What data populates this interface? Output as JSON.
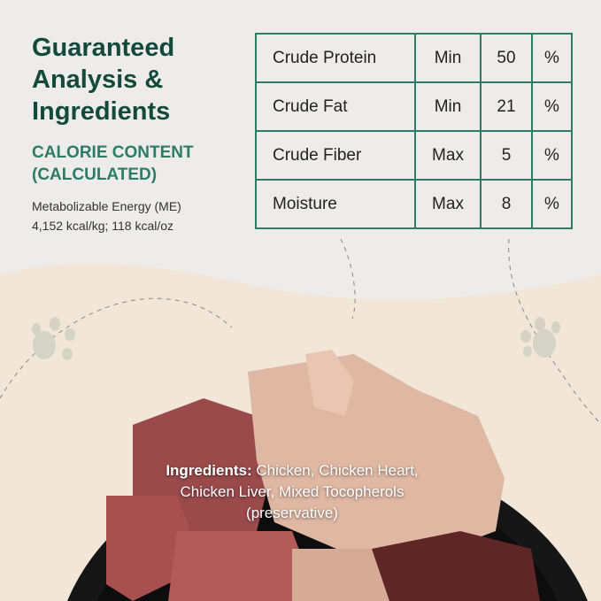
{
  "heading": {
    "title_lines": [
      "Guaranteed",
      "Analysis &",
      "Ingredients"
    ]
  },
  "calorie": {
    "label_lines": [
      "CALORIE CONTENT",
      "(CALCULATED)"
    ],
    "me_label": "Metabolizable Energy (ME)",
    "me_value": "4,152 kcal/kg; 118 kcal/oz"
  },
  "analysis": [
    {
      "name": "Crude Protein",
      "qual": "Min",
      "value": "50",
      "unit": "%"
    },
    {
      "name": "Crude Fat",
      "qual": "Min",
      "value": "21",
      "unit": "%"
    },
    {
      "name": "Crude Fiber",
      "qual": "Max",
      "value": "5",
      "unit": "%"
    },
    {
      "name": "Moisture",
      "qual": "Max",
      "value": "8",
      "unit": "%"
    }
  ],
  "ingredients": {
    "label": "Ingredients:",
    "lines": [
      " Chicken, Chicken Heart,",
      "Chicken Liver, Mixed Tocopherols",
      "(preservative)"
    ]
  },
  "colors": {
    "heading": "#134a3c",
    "accent": "#2c7c68",
    "cream": "#f1e6d8",
    "bowl": "#161616"
  }
}
